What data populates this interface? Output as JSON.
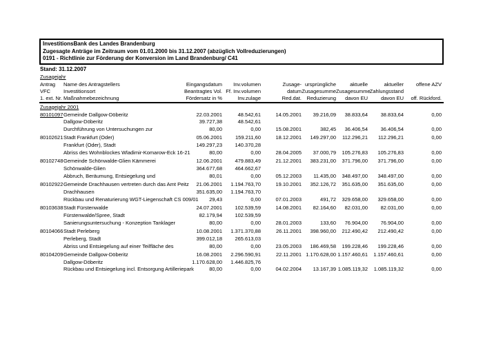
{
  "header_box": {
    "line1": "InvestitionsBank des Landes Brandenburg",
    "line2": "Zugesagte Anträge im Zeitraum vom 01.01.2000 bis 31.12.2007 (abzüglich Vollreduzierungen)",
    "line3": "0191 - Richtlinie zur Förderung der Konversion im Land Brandenburg/ C41"
  },
  "stand": "Stand: 31.12.2007",
  "zusagejahr_label": "Zusagejahr",
  "group_label": "Zusagejahr 2001",
  "table": {
    "header_lines": [
      [
        "Antrag",
        "Name des Antragstellers",
        "Eingangsdatum",
        "Inv.volumen",
        "Zusage-",
        "ursprüngliche",
        "aktuelle",
        "aktueller",
        "offene AZV"
      ],
      [
        "VFC",
        "Investitionsort",
        "Beantragtes Vol.",
        "Ff. Inv.volumen",
        "datum",
        "Zusagesumme",
        "Zusagesumme",
        "Zahlungsstand",
        ""
      ],
      [
        "1. ext. Nr.",
        "Maßnahmebezeichnung",
        "Fördersatz in %",
        "Inv.zulage",
        "Red.dat.",
        "Reduzierung",
        "davon EU",
        "davon EU",
        "off. Rückford."
      ]
    ],
    "rows": [
      {
        "antrag": "80101097",
        "antrag_link": true,
        "name": "Gemeinde Dallgow-Döberitz",
        "eingangsdatum": "22.03.2001",
        "inv_volumen": "48.542,61",
        "inv_volumen_large": true,
        "zusage_datum": "14.05.2001",
        "urspr_zusagesumme": "39.216,09",
        "akt_zusagesumme": "38.833,64",
        "akt_zahlungsstand": "38.833,64",
        "offene_azv": "0,00",
        "investitionsort": "Dallgow-Döberitz",
        "beantragtes_vol": "39.727,38",
        "ff_inv_volumen": "48.542,61",
        "massnahme": "Durchführung von Untersuchungen zur",
        "foerdersatz": "80,00",
        "inv_zulage": "0,00",
        "red_dat": "15.08.2001",
        "reduzierung": "382,45",
        "davon_eu_zusage": "36.406,54",
        "davon_eu_zahlung": "36.406,54",
        "off_rueckford": "0,00"
      },
      {
        "antrag": "80102621",
        "antrag_link": false,
        "name": "Stadt Frankfurt (Oder)",
        "eingangsdatum": "05.06.2001",
        "inv_volumen": "159.211,60",
        "inv_volumen_large": false,
        "zusage_datum": "18.12.2001",
        "urspr_zusagesumme": "149.297,00",
        "akt_zusagesumme": "112.296,21",
        "akt_zahlungsstand": "112.296,21",
        "offene_azv": "0,00",
        "investitionsort": "Frankfurt (Oder), Stadt",
        "beantragtes_vol": "149.297,23",
        "ff_inv_volumen": "140.370,28",
        "massnahme": "Abriss des Wohnblockes Wladimir-Komarow-Eck 16-21",
        "foerdersatz": "80,00",
        "inv_zulage": "0,00",
        "red_dat": "28.04.2005",
        "reduzierung": "37.000,79",
        "davon_eu_zusage": "105.276,83",
        "davon_eu_zahlung": "105.276,83",
        "off_rueckford": "0,00"
      },
      {
        "antrag": "80102748",
        "antrag_link": false,
        "name": "Gemeinde Schönwalde-Glien Kämmerei",
        "eingangsdatum": "12.06.2001",
        "inv_volumen": "479.883,49",
        "inv_volumen_large": false,
        "zusage_datum": "21.12.2001",
        "urspr_zusagesumme": "383.231,00",
        "akt_zusagesumme": "371.796,00",
        "akt_zahlungsstand": "371.796,00",
        "offene_azv": "0,00",
        "investitionsort": "Schönwalde-Glien",
        "beantragtes_vol": "364.677,68",
        "ff_inv_volumen": "464.662,67",
        "massnahme": "Abbruch, Beräumung, Entsiegelung und",
        "foerdersatz": "80,01",
        "inv_zulage": "0,00",
        "red_dat": "05.12.2003",
        "reduzierung": "11.435,00",
        "davon_eu_zusage": "348.497,00",
        "davon_eu_zahlung": "348.497,00",
        "off_rueckford": "0,00"
      },
      {
        "antrag": "80102922",
        "antrag_link": false,
        "name": "Gemeinde Drachhausen vertreten durch das Amt Peitz",
        "eingangsdatum": "21.06.2001",
        "inv_volumen": "1.194.763,70",
        "inv_volumen_large": false,
        "zusage_datum": "19.10.2001",
        "urspr_zusagesumme": "352.126,72",
        "akt_zusagesumme": "351.635,00",
        "akt_zahlungsstand": "351.635,00",
        "offene_azv": "0,00",
        "investitionsort": "Drachhausen",
        "beantragtes_vol": "351.635,00",
        "ff_inv_volumen": "1.194.763,70",
        "massnahme": "Rückbau und Renaturierung WGT-Liegenschaft CS 009/01",
        "foerdersatz": "29,43",
        "inv_zulage": "0,00",
        "red_dat": "07.01.2003",
        "reduzierung": "491,72",
        "davon_eu_zusage": "329.658,00",
        "davon_eu_zahlung": "329.658,00",
        "off_rueckford": "0,00"
      },
      {
        "antrag": "80103638",
        "antrag_link": false,
        "name": "Stadt Fürstenwalde",
        "eingangsdatum": "24.07.2001",
        "inv_volumen": "102.539,59",
        "inv_volumen_large": false,
        "zusage_datum": "14.08.2001",
        "urspr_zusagesumme": "82.164,60",
        "akt_zusagesumme": "82.031,00",
        "akt_zahlungsstand": "82.031,00",
        "offene_azv": "0,00",
        "investitionsort": "Fürstenwalde/Spree, Stadt",
        "beantragtes_vol": "82.179,94",
        "ff_inv_volumen": "102.539,59",
        "massnahme": "Sanierungsuntersuchung - Konzeption Tanklager",
        "foerdersatz": "80,00",
        "inv_zulage": "0,00",
        "red_dat": "28.01.2003",
        "reduzierung": "133,60",
        "davon_eu_zusage": "76.904,00",
        "davon_eu_zahlung": "76.904,00",
        "off_rueckford": "0,00"
      },
      {
        "antrag": "80104066",
        "antrag_link": false,
        "name": "Stadt Perleberg",
        "eingangsdatum": "10.08.2001",
        "inv_volumen": "1.371.370,88",
        "inv_volumen_large": false,
        "zusage_datum": "26.11.2001",
        "urspr_zusagesumme": "398.960,00",
        "akt_zusagesumme": "212.490,42",
        "akt_zahlungsstand": "212.490,42",
        "offene_azv": "0,00",
        "investitionsort": "Perleberg, Stadt",
        "beantragtes_vol": "399.012,18",
        "ff_inv_volumen": "265.613,03",
        "massnahme": "Abriss und Entsiegelung auf einer Teilfläche des",
        "foerdersatz": "80,00",
        "inv_zulage": "0,00",
        "red_dat": "23.05.2003",
        "reduzierung": "186.469,58",
        "davon_eu_zusage": "199.228,46",
        "davon_eu_zahlung": "199.228,46",
        "off_rueckford": "0,00"
      },
      {
        "antrag": "80104209",
        "antrag_link": false,
        "name": "Gemeinde Dallgow-Döberitz",
        "eingangsdatum": "16.08.2001",
        "inv_volumen": "2.296.590,91",
        "inv_volumen_large": false,
        "zusage_datum": "22.11.2001",
        "urspr_zusagesumme": "1.170.628,00",
        "akt_zusagesumme": "1.157.460,61",
        "akt_zahlungsstand": "1.157.460,61",
        "offene_azv": "0,00",
        "investitionsort": "Dallgow-Döberitz",
        "beantragtes_vol": "1.170.628,00",
        "ff_inv_volumen": "1.446.825,76",
        "massnahme": "Rückbau und Entsiegelung incl. Entsorgung Artilleriepark",
        "foerdersatz": "80,00",
        "inv_zulage": "0,00",
        "red_dat": "04.02.2004",
        "reduzierung": "13.167,39",
        "davon_eu_zusage": "1.085.119,32",
        "davon_eu_zahlung": "1.085.119,32",
        "off_rueckford": "0,00"
      }
    ]
  }
}
